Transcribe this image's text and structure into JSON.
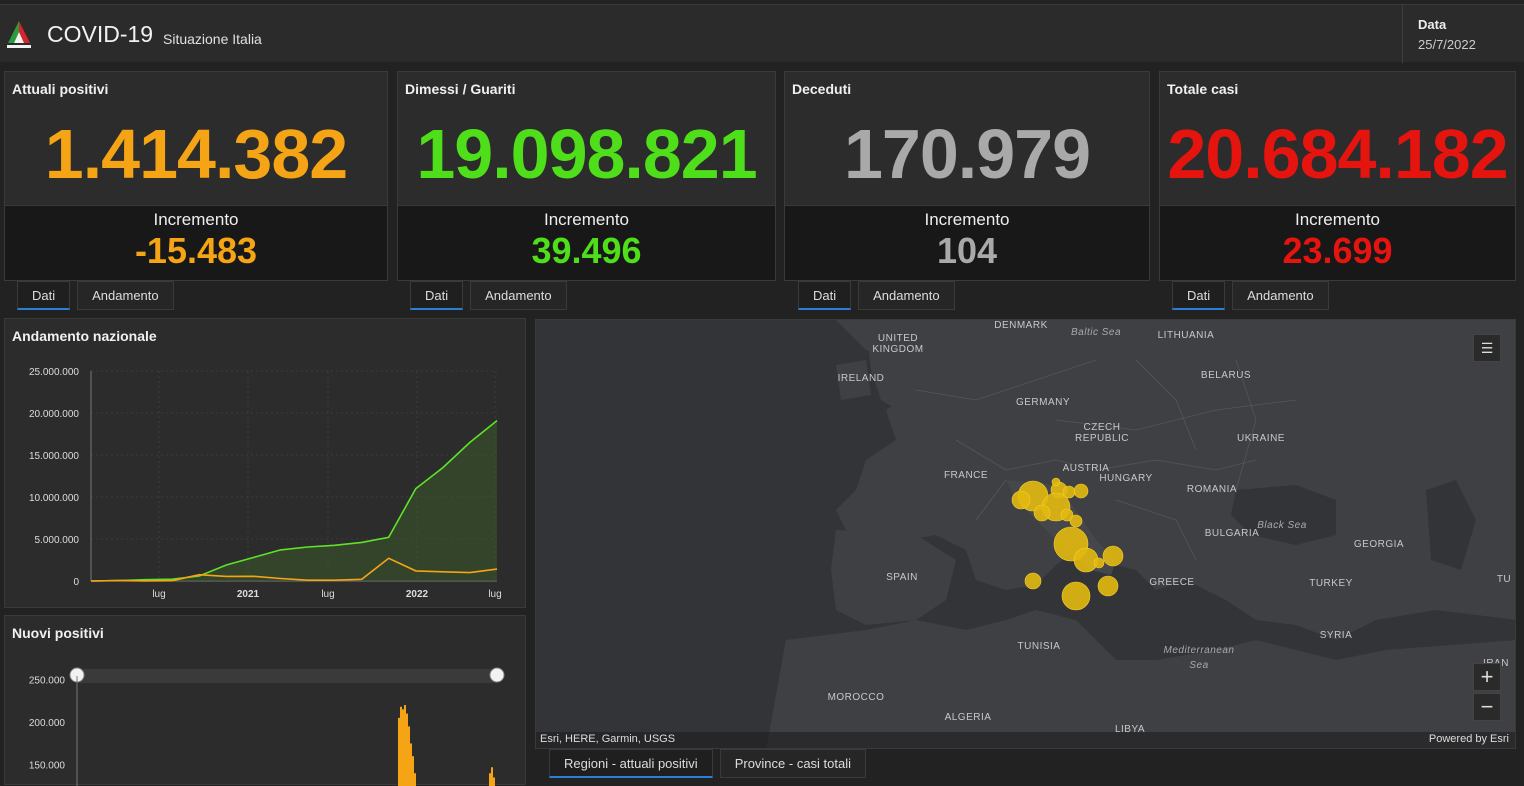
{
  "header": {
    "title": "COVID-19",
    "subtitle": "Situazione Italia",
    "date_label": "Data",
    "date_value": "25/7/2022"
  },
  "cards": [
    {
      "title": "Attuali positivi",
      "value": "1.414.382",
      "inc_label": "Incremento",
      "inc_value": "-15.483",
      "color": "#f5a416"
    },
    {
      "title": "Dimessi / Guariti",
      "value": "19.098.821",
      "inc_label": "Incremento",
      "inc_value": "39.496",
      "color": "#4fde1a"
    },
    {
      "title": "Deceduti",
      "value": "170.979",
      "inc_label": "Incremento",
      "inc_value": "104",
      "color": "#a9a9a9"
    },
    {
      "title": "Totale casi",
      "value": "20.684.182",
      "inc_label": "Incremento",
      "inc_value": "23.699",
      "color": "#e5140f"
    }
  ],
  "card_tabs": {
    "dati": "Dati",
    "andamento": "Andamento"
  },
  "andamento": {
    "title": "Andamento nazionale",
    "y_ticks": [
      "25.000.000",
      "20.000.000",
      "15.000.000",
      "10.000.000",
      "5.000.000",
      "0"
    ],
    "x_ticks": [
      "lug",
      "2021",
      "lug",
      "2022",
      "lug"
    ]
  },
  "nuovi": {
    "title": "Nuovi positivi",
    "y_ticks": [
      "250.000",
      "200.000",
      "150.000"
    ]
  },
  "chart_data": [
    {
      "type": "line",
      "title": "Andamento nazionale",
      "x": [
        "2020-03",
        "2020-05",
        "2020-07",
        "2020-09",
        "2020-11",
        "2021-01",
        "2021-03",
        "2021-05",
        "2021-07",
        "2021-09",
        "2021-11",
        "2022-01",
        "2022-02",
        "2022-03",
        "2022-05",
        "2022-07"
      ],
      "series": [
        {
          "color": "#5fe22a",
          "values": [
            0,
            50000,
            150000,
            220000,
            600000,
            1900000,
            2800000,
            3700000,
            4050000,
            4250000,
            4600000,
            5200000,
            11000000,
            13500000,
            16500000,
            19098821
          ]
        },
        {
          "color": "#f5a416",
          "values": [
            0,
            50000,
            15000,
            40000,
            750000,
            550000,
            560000,
            300000,
            100000,
            100000,
            200000,
            2700000,
            1200000,
            1100000,
            1000000,
            1414382
          ]
        }
      ],
      "ylim": [
        0,
        25000000
      ]
    },
    {
      "type": "bar",
      "title": "Nuovi positivi",
      "ylim": [
        125000,
        260000
      ],
      "note": "visible top portion only"
    }
  ],
  "map": {
    "labels": [
      {
        "t": "DENMARK"
      },
      {
        "t": "Baltic Sea",
        "sea": true
      },
      {
        "t": "LITHUANIA"
      },
      {
        "t": "UNITED"
      },
      {
        "t": "KINGDOM"
      },
      {
        "t": "IRELAND"
      },
      {
        "t": "BELARUS"
      },
      {
        "t": "GERMANY"
      },
      {
        "t": "CZECH"
      },
      {
        "t": "REPUBLIC"
      },
      {
        "t": "UKRAINE"
      },
      {
        "t": "AUSTRIA"
      },
      {
        "t": "FRANCE"
      },
      {
        "t": "HUNGARY"
      },
      {
        "t": "ROMANIA"
      },
      {
        "t": "Black Sea",
        "sea": true
      },
      {
        "t": "BULGARIA"
      },
      {
        "t": "GEORGIA"
      },
      {
        "t": "SPAIN"
      },
      {
        "t": "GREECE"
      },
      {
        "t": "TURKEY"
      },
      {
        "t": "TUNISIA"
      },
      {
        "t": "SYRIA"
      },
      {
        "t": "Mediterranean",
        "sea": true
      },
      {
        "t": "Sea",
        "sea": true
      },
      {
        "t": "MOROCCO"
      },
      {
        "t": "ALGERIA"
      },
      {
        "t": "LIBYA"
      },
      {
        "t": "IRAN"
      },
      {
        "t": "TU"
      }
    ],
    "attribution": "Esri, HERE, Garmin, USGS",
    "powered": "Powered by Esri",
    "zoom_in": "+",
    "zoom_out": "−",
    "tabs": [
      "Regioni - attuali positivi",
      "Province - casi totali"
    ]
  }
}
